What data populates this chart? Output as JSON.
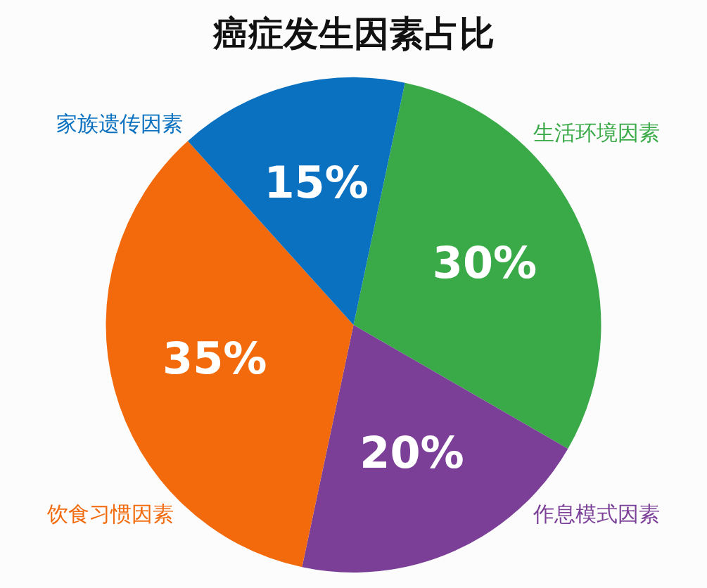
{
  "chart_data": {
    "type": "pie",
    "title": "癌症发生因素占比",
    "categories": [
      "生活环境因素",
      "作息模式因素",
      "饮食习惯因素",
      "家族遗传因素"
    ],
    "values": [
      30,
      20,
      35,
      15
    ],
    "colors": [
      "#3aaa48",
      "#7b3f98",
      "#f26a0b",
      "#0a70c0"
    ],
    "value_labels": [
      "30%",
      "20%",
      "35%",
      "15%"
    ],
    "legend": false
  }
}
